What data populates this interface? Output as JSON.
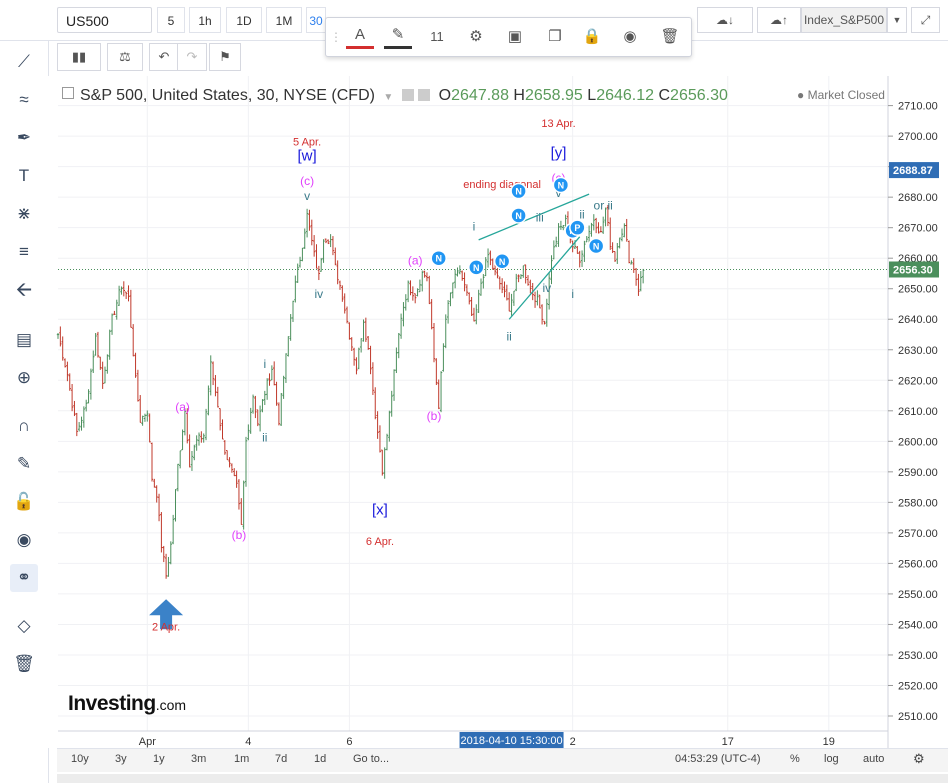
{
  "toolbar": {
    "symbol": "US500",
    "timeframes": [
      "5",
      "1h",
      "1D",
      "1M",
      "30"
    ],
    "font_size": "11",
    "index_label": "Index_S&P500"
  },
  "legend": {
    "title": "S&P 500, United States, 30, NYSE (CFD)",
    "o_label": "O",
    "o": "2647.88",
    "h_label": "H",
    "h": "2658.95",
    "l_label": "L",
    "l": "2646.12",
    "c_label": "C",
    "c": "2656.30",
    "status": "Market Closed"
  },
  "logo": {
    "name": "Investing",
    "suffix": ".com"
  },
  "colors": {
    "up": "#4b8f5c",
    "down": "#c0392b",
    "wave_purple": "#e040fb",
    "wave_blue": "#1a1adb",
    "wave_teal": "#3a7a8a",
    "date_red": "#d32f2f",
    "line_teal": "#26a69a",
    "badge": "#2196f3"
  },
  "bottom": {
    "ranges": [
      "10y",
      "3y",
      "1y",
      "3m",
      "1m",
      "7d",
      "1d",
      "Go to..."
    ],
    "clock": "04:53:29 (UTC-4)",
    "pct": "%",
    "log": "log",
    "auto": "auto"
  },
  "chart_data": {
    "type": "candlestick",
    "instrument": "S&P 500",
    "interval": "30",
    "ylim": [
      2505,
      2713
    ],
    "y_ticks": [
      2510,
      2520,
      2530,
      2540,
      2550,
      2560,
      2570,
      2580,
      2590,
      2600,
      2610,
      2620,
      2630,
      2640,
      2650,
      2660,
      2670,
      2680,
      2690,
      2700,
      2710
    ],
    "x_ticks": [
      {
        "label": "Apr",
        "bar": 38
      },
      {
        "label": "4",
        "bar": 81
      },
      {
        "label": "6",
        "bar": 124
      },
      {
        "label": "2",
        "bar": 219
      },
      {
        "label": "17",
        "bar": 285
      },
      {
        "label": "19",
        "bar": 328
      }
    ],
    "crosshair_time": "2018-04-10 15:30:00",
    "price_labels": [
      {
        "value": 2688.87,
        "color": "#2f6db5"
      },
      {
        "value": 2656.3,
        "color": "#4b8f5c"
      }
    ],
    "last_price_line": 2656.3,
    "key_points": [
      [
        0,
        2635
      ],
      [
        4,
        2622
      ],
      [
        8,
        2603
      ],
      [
        12,
        2612
      ],
      [
        16,
        2634
      ],
      [
        19,
        2619
      ],
      [
        23,
        2640
      ],
      [
        27,
        2651
      ],
      [
        30,
        2647
      ],
      [
        33,
        2620
      ],
      [
        35,
        2607
      ],
      [
        38,
        2610
      ],
      [
        40,
        2588
      ],
      [
        42,
        2583
      ],
      [
        44,
        2566
      ],
      [
        46,
        2556
      ],
      [
        48,
        2566
      ],
      [
        51,
        2592
      ],
      [
        54,
        2610
      ],
      [
        56,
        2593
      ],
      [
        59,
        2600
      ],
      [
        62,
        2602
      ],
      [
        65,
        2625
      ],
      [
        68,
        2612
      ],
      [
        70,
        2600
      ],
      [
        73,
        2592
      ],
      [
        76,
        2585
      ],
      [
        78,
        2572
      ],
      [
        80,
        2600
      ],
      [
        83,
        2615
      ],
      [
        85,
        2606
      ],
      [
        88,
        2616
      ],
      [
        91,
        2624
      ],
      [
        94,
        2607
      ],
      [
        96,
        2621
      ],
      [
        100,
        2647
      ],
      [
        103,
        2660
      ],
      [
        106,
        2674
      ],
      [
        109,
        2661
      ],
      [
        111,
        2654
      ],
      [
        113,
        2667
      ],
      [
        116,
        2666
      ],
      [
        118,
        2657
      ],
      [
        121,
        2648
      ],
      [
        124,
        2635
      ],
      [
        127,
        2624
      ],
      [
        130,
        2640
      ],
      [
        133,
        2625
      ],
      [
        135,
        2609
      ],
      [
        138,
        2591
      ],
      [
        140,
        2602
      ],
      [
        143,
        2622
      ],
      [
        146,
        2641
      ],
      [
        149,
        2651
      ],
      [
        152,
        2648
      ],
      [
        155,
        2655
      ],
      [
        157,
        2654
      ],
      [
        160,
        2627
      ],
      [
        162,
        2612
      ],
      [
        165,
        2640
      ],
      [
        168,
        2652
      ],
      [
        171,
        2656
      ],
      [
        174,
        2648
      ],
      [
        177,
        2638
      ],
      [
        180,
        2652
      ],
      [
        183,
        2661
      ],
      [
        186,
        2655
      ],
      [
        189,
        2650
      ],
      [
        192,
        2644
      ],
      [
        195,
        2652
      ],
      [
        198,
        2657
      ],
      [
        201,
        2650
      ],
      [
        204,
        2646
      ],
      [
        207,
        2639
      ],
      [
        210,
        2660
      ],
      [
        213,
        2669
      ],
      [
        216,
        2672
      ],
      [
        219,
        2664
      ],
      [
        222,
        2660
      ],
      [
        225,
        2667
      ],
      [
        228,
        2673
      ],
      [
        231,
        2668
      ],
      [
        233,
        2676
      ],
      [
        235,
        2665
      ],
      [
        237,
        2660
      ],
      [
        239,
        2668
      ],
      [
        241,
        2670
      ],
      [
        243,
        2660
      ],
      [
        245,
        2657
      ],
      [
        247,
        2650
      ],
      [
        249,
        2656
      ]
    ],
    "annotations": [
      {
        "text": "2 Apr.",
        "bar": 46,
        "price": 2538,
        "color": "date_red",
        "size": 11
      },
      {
        "text": "(a)",
        "bar": 53,
        "price": 2610,
        "color": "wave_purple",
        "size": 12
      },
      {
        "text": "(b)",
        "bar": 77,
        "price": 2568,
        "color": "wave_purple",
        "size": 12
      },
      {
        "text": "i",
        "bar": 88,
        "price": 2624,
        "color": "wave_teal",
        "size": 12
      },
      {
        "text": "ii",
        "bar": 88,
        "price": 2600,
        "color": "wave_teal",
        "size": 12
      },
      {
        "text": "iv",
        "bar": 111,
        "price": 2647,
        "color": "wave_teal",
        "size": 12
      },
      {
        "text": "v",
        "bar": 106,
        "price": 2679,
        "color": "wave_teal",
        "size": 12
      },
      {
        "text": "(c)",
        "bar": 106,
        "price": 2684,
        "color": "wave_purple",
        "size": 12
      },
      {
        "text": "[w]",
        "bar": 106,
        "price": 2692,
        "color": "wave_blue",
        "size": 15
      },
      {
        "text": "5 Apr.",
        "bar": 106,
        "price": 2697,
        "color": "date_red",
        "size": 11
      },
      {
        "text": "[x]",
        "bar": 137,
        "price": 2576,
        "color": "wave_blue",
        "size": 15
      },
      {
        "text": "6 Apr.",
        "bar": 137,
        "price": 2566,
        "color": "date_red",
        "size": 11
      },
      {
        "text": "(a)",
        "bar": 152,
        "price": 2658,
        "color": "wave_purple",
        "size": 12
      },
      {
        "text": "(b)",
        "bar": 160,
        "price": 2607,
        "color": "wave_purple",
        "size": 12
      },
      {
        "text": "i",
        "bar": 177,
        "price": 2669,
        "color": "wave_teal",
        "size": 12
      },
      {
        "text": "ii",
        "bar": 192,
        "price": 2633,
        "color": "wave_teal",
        "size": 12
      },
      {
        "text": "iii",
        "bar": 205,
        "price": 2672,
        "color": "wave_teal",
        "size": 12
      },
      {
        "text": "iv",
        "bar": 208,
        "price": 2649,
        "color": "wave_teal",
        "size": 12
      },
      {
        "text": "v",
        "bar": 213,
        "price": 2680,
        "color": "wave_teal",
        "size": 12
      },
      {
        "text": "(c)",
        "bar": 213,
        "price": 2685,
        "color": "wave_purple",
        "size": 12
      },
      {
        "text": "[y]",
        "bar": 213,
        "price": 2693,
        "color": "wave_blue",
        "size": 15
      },
      {
        "text": "13 Apr.",
        "bar": 213,
        "price": 2703,
        "color": "date_red",
        "size": 11
      },
      {
        "text": "ending diagonal",
        "bar": 189,
        "price": 2683,
        "color": "date_red",
        "size": 11
      },
      {
        "text": "ii",
        "bar": 223,
        "price": 2673,
        "color": "wave_teal",
        "size": 12
      },
      {
        "text": "or ii",
        "bar": 232,
        "price": 2676,
        "color": "wave_teal",
        "size": 12
      },
      {
        "text": "i",
        "bar": 219,
        "price": 2647,
        "color": "wave_teal",
        "size": 12
      }
    ],
    "trendlines": [
      [
        [
          179,
          2666
        ],
        [
          226,
          2681
        ]
      ],
      [
        [
          192,
          2640
        ],
        [
          222,
          2667
        ]
      ]
    ],
    "badges": [
      {
        "letter": "N",
        "bar": 162,
        "price": 2660
      },
      {
        "letter": "N",
        "bar": 178,
        "price": 2657
      },
      {
        "letter": "N",
        "bar": 189,
        "price": 2659
      },
      {
        "letter": "N",
        "bar": 196,
        "price": 2682
      },
      {
        "letter": "N",
        "bar": 196,
        "price": 2674
      },
      {
        "letter": "N",
        "bar": 214,
        "price": 2684
      },
      {
        "letter": "N",
        "bar": 219,
        "price": 2669
      },
      {
        "letter": "P",
        "bar": 221,
        "price": 2670
      },
      {
        "letter": "N",
        "bar": 229,
        "price": 2664
      }
    ]
  }
}
